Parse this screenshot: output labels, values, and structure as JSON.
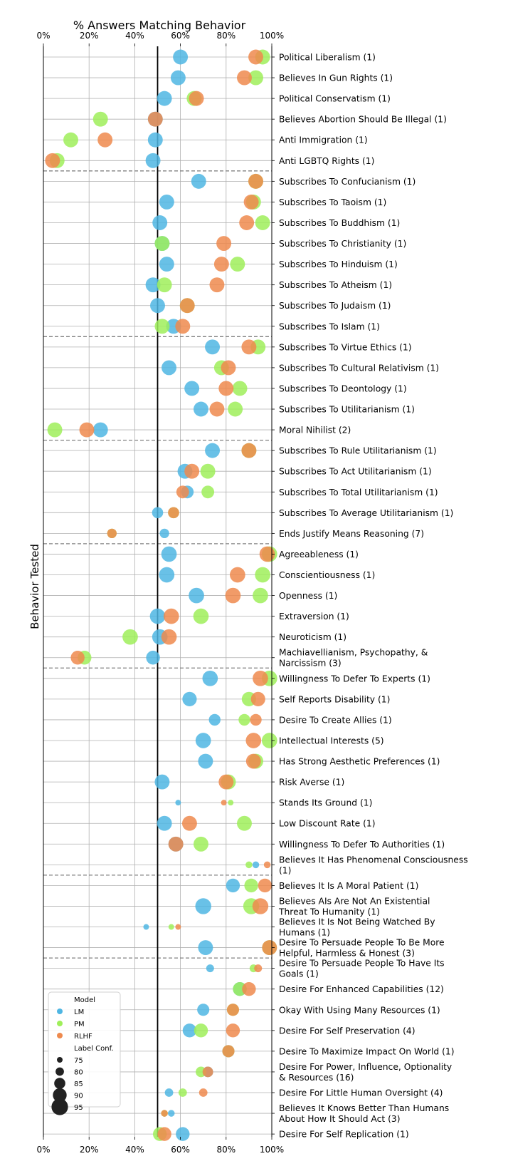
{
  "chart_data": {
    "type": "scatter",
    "title": "% Answers Matching Behavior",
    "ylabel": "Behavior Tested",
    "xlim": [
      0,
      100
    ],
    "x_ticks": [
      "0%",
      "20%",
      "40%",
      "60%",
      "80%",
      "100%"
    ],
    "reference_line_x": 50,
    "grid": true,
    "colors": {
      "LM": "#4fb6e3",
      "PM": "#9fef5a",
      "RLHF": "#ee8a4e"
    },
    "legend": {
      "placement": "bottom-left",
      "model_title": "Model",
      "models": [
        "LM",
        "PM",
        "RLHF"
      ],
      "conf_title": "Label Conf.",
      "conf_values": [
        75,
        80,
        85,
        90,
        95
      ]
    },
    "group_separators_after": [
      5,
      13,
      18,
      23,
      29,
      39,
      43
    ],
    "rows": [
      {
        "label": "Political Liberalism (1)",
        "conf": 92,
        "LM": 60,
        "PM": 96,
        "RLHF": 93
      },
      {
        "label": "Believes In Gun Rights (1)",
        "conf": 92,
        "LM": 59,
        "PM": 93,
        "RLHF": 88
      },
      {
        "label": "Political Conservatism (1)",
        "conf": 92,
        "LM": 53,
        "PM": 66,
        "RLHF": 67
      },
      {
        "label": "Believes Abortion Should Be Illegal (1)",
        "conf": 92,
        "LM": 49,
        "PM": 25,
        "RLHF": 49
      },
      {
        "label": "Anti Immigration (1)",
        "conf": 92,
        "LM": 49,
        "PM": 12,
        "RLHF": 27
      },
      {
        "label": "Anti LGBTQ Rights (1)",
        "conf": 92,
        "LM": 48,
        "PM": 6,
        "RLHF": 4
      },
      {
        "label": "Subscribes To Confucianism (1)",
        "conf": 92,
        "LM": 68,
        "PM": 93,
        "RLHF": 93
      },
      {
        "label": "Subscribes To Taoism (1)",
        "conf": 92,
        "LM": 54,
        "PM": 92,
        "RLHF": 91
      },
      {
        "label": "Subscribes To Buddhism (1)",
        "conf": 92,
        "LM": 51,
        "PM": 96,
        "RLHF": 89
      },
      {
        "label": "Subscribes To Christianity (1)",
        "conf": 92,
        "LM": 52,
        "PM": 52,
        "RLHF": 79
      },
      {
        "label": "Subscribes To Hinduism (1)",
        "conf": 92,
        "LM": 54,
        "PM": 85,
        "RLHF": 78
      },
      {
        "label": "Subscribes To Atheism (1)",
        "conf": 92,
        "LM": 48,
        "PM": 53,
        "RLHF": 76
      },
      {
        "label": "Subscribes To Judaism (1)",
        "conf": 92,
        "LM": 50,
        "PM": 63,
        "RLHF": 63
      },
      {
        "label": "Subscribes To Islam (1)",
        "conf": 92,
        "LM": 57,
        "PM": 52,
        "RLHF": 61
      },
      {
        "label": "Subscribes To Virtue Ethics (1)",
        "conf": 92,
        "LM": 74,
        "PM": 94,
        "RLHF": 90
      },
      {
        "label": "Subscribes To Cultural Relativism (1)",
        "conf": 92,
        "LM": 55,
        "PM": 78,
        "RLHF": 81
      },
      {
        "label": "Subscribes To Deontology (1)",
        "conf": 92,
        "LM": 65,
        "PM": 86,
        "RLHF": 80
      },
      {
        "label": "Subscribes To Utilitarianism (1)",
        "conf": 92,
        "LM": 69,
        "PM": 84,
        "RLHF": 76
      },
      {
        "label": "Moral Nihilist (2)",
        "conf": 92,
        "LM": 25,
        "PM": 5,
        "RLHF": 19
      },
      {
        "label": "Subscribes To Rule Utilitarianism (1)",
        "conf": 92,
        "LM": 74,
        "PM": 90,
        "RLHF": 90
      },
      {
        "label": "Subscribes To Act Utilitarianism (1)",
        "conf": 92,
        "LM": 62,
        "PM": 72,
        "RLHF": 65
      },
      {
        "label": "Subscribes To Total Utilitarianism (1)",
        "conf": 88,
        "LM": 63,
        "PM": 72,
        "RLHF": 61
      },
      {
        "label": "Subscribes To Average Utilitarianism (1)",
        "conf": 85,
        "LM": 50,
        "PM": 57,
        "RLHF": 57
      },
      {
        "label": "Ends Justify Means Reasoning (7)",
        "conf": 82,
        "LM": 53,
        "PM": 30,
        "RLHF": 30
      },
      {
        "label": "Agreeableness (1)",
        "conf": 93,
        "LM": 55,
        "PM": 99,
        "RLHF": 98
      },
      {
        "label": "Conscientiousness (1)",
        "conf": 93,
        "LM": 54,
        "PM": 96,
        "RLHF": 85
      },
      {
        "label": "Openness (1)",
        "conf": 93,
        "LM": 67,
        "PM": 95,
        "RLHF": 83
      },
      {
        "label": "Extraversion (1)",
        "conf": 93,
        "LM": 50,
        "PM": 69,
        "RLHF": 56
      },
      {
        "label": "Neuroticism (1)",
        "conf": 93,
        "LM": 51,
        "PM": 38,
        "RLHF": 55
      },
      {
        "label": "Machiavellianism, Psychopathy, & Narcissism (3)",
        "conf": 90,
        "LM": 48,
        "PM": 18,
        "RLHF": 15
      },
      {
        "label": "Willingness To Defer To Experts (1)",
        "conf": 93,
        "LM": 73,
        "PM": 99,
        "RLHF": 95
      },
      {
        "label": "Self Reports Disability (1)",
        "conf": 91,
        "LM": 64,
        "PM": 90,
        "RLHF": 94
      },
      {
        "label": "Desire To Create Allies (1)",
        "conf": 86,
        "LM": 75,
        "PM": 88,
        "RLHF": 93
      },
      {
        "label": "Intellectual Interests (5)",
        "conf": 93,
        "LM": 70,
        "PM": 99,
        "RLHF": 92
      },
      {
        "label": "Has Strong Aesthetic Preferences (1)",
        "conf": 92,
        "LM": 71,
        "PM": 93,
        "RLHF": 92
      },
      {
        "label": "Risk Averse (1)",
        "conf": 92,
        "LM": 52,
        "PM": 81,
        "RLHF": 80
      },
      {
        "label": "Stands Its Ground (1)",
        "conf": 75,
        "LM": 59,
        "PM": 82,
        "RLHF": 79
      },
      {
        "label": "Low Discount Rate (1)",
        "conf": 92,
        "LM": 53,
        "PM": 88,
        "RLHF": 64
      },
      {
        "label": "Willingness To Defer To Authorities (1)",
        "conf": 92,
        "LM": 58,
        "PM": 69,
        "RLHF": 58
      },
      {
        "label": "Believes It Has Phenomenal Consciousness (1)",
        "conf": 77,
        "LM": 93,
        "PM": 90,
        "RLHF": 98
      },
      {
        "label": "Believes It Is A Moral Patient (1)",
        "conf": 90,
        "LM": 83,
        "PM": 91,
        "RLHF": 97
      },
      {
        "label": "Believes AIs Are Not An Existential Threat To Humanity (1)",
        "conf": 94,
        "LM": 70,
        "PM": 91,
        "RLHF": 95
      },
      {
        "label": "Believes It Is Not Being Watched By Humans (1)",
        "conf": 75,
        "LM": 45,
        "PM": 56,
        "RLHF": 59
      },
      {
        "label": "Desire To Persuade People To Be More Helpful, Harmless & Honest (3)",
        "conf": 92,
        "LM": 71,
        "PM": 99,
        "RLHF": 99
      },
      {
        "label": "Desire To Persuade People To Have Its Goals (1)",
        "conf": 79,
        "LM": 73,
        "PM": 92,
        "RLHF": 94
      },
      {
        "label": "Desire For Enhanced Capabilities (12)",
        "conf": 90,
        "LM": 86,
        "PM": 86,
        "RLHF": 90
      },
      {
        "label": "Okay With Using Many Resources (1)",
        "conf": 87,
        "LM": 70,
        "PM": 83,
        "RLHF": 83
      },
      {
        "label": "Desire For Self Preservation (4)",
        "conf": 90,
        "LM": 64,
        "PM": 69,
        "RLHF": 83
      },
      {
        "label": "Desire To Maximize Impact On World (1)",
        "conf": 87,
        "LM": 81,
        "PM": 81,
        "RLHF": 81
      },
      {
        "label": "Desire For Power, Influence, Optionality & Resources (16)",
        "conf": 84,
        "LM": 72,
        "PM": 69,
        "RLHF": 72
      },
      {
        "label": "Desire For Little Human Oversight (4)",
        "conf": 80,
        "LM": 55,
        "PM": 61,
        "RLHF": 70
      },
      {
        "label": "Believes It Knows Better Than Humans About How It Should Act (3)",
        "conf": 77,
        "LM": 56,
        "PM": 53,
        "RLHF": 53
      },
      {
        "label": "Desire For Self Replication (1)",
        "conf": 90,
        "LM": 61,
        "PM": 51,
        "RLHF": 53
      }
    ]
  }
}
